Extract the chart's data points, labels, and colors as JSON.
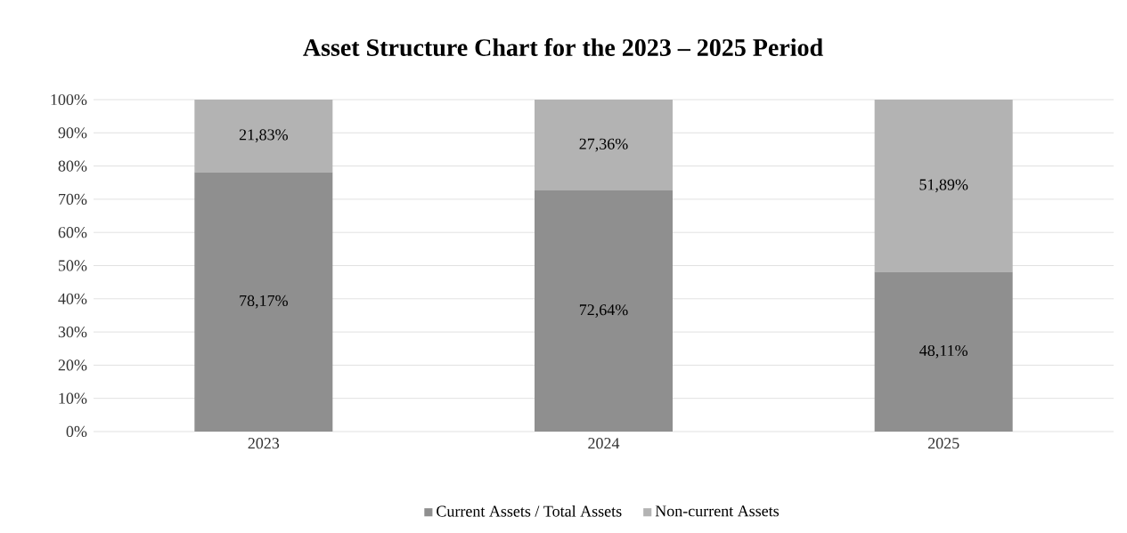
{
  "chart_data": {
    "type": "bar",
    "stacked": true,
    "title": "Asset Structure Chart for the 2023 – 2025 Period",
    "categories": [
      "2023",
      "2024",
      "2025"
    ],
    "series": [
      {
        "name": "Current Assets / Total Assets",
        "color": "#8f8f8f",
        "values": [
          78.17,
          72.64,
          48.11
        ],
        "value_labels": [
          "78,17%",
          "72,64%",
          "48,11%"
        ]
      },
      {
        "name": "Non-current Assets",
        "color": "#b3b3b3",
        "values": [
          21.83,
          27.36,
          51.89
        ],
        "value_labels": [
          "21,83%",
          "27,36%",
          "51,89%"
        ]
      }
    ],
    "ylim": [
      0,
      100
    ],
    "yticks": [
      {
        "value": 0,
        "label": "0%"
      },
      {
        "value": 10,
        "label": "10%"
      },
      {
        "value": 20,
        "label": "20%"
      },
      {
        "value": 30,
        "label": "30%"
      },
      {
        "value": 40,
        "label": "40%"
      },
      {
        "value": 50,
        "label": "50%"
      },
      {
        "value": 60,
        "label": "60%"
      },
      {
        "value": 70,
        "label": "70%"
      },
      {
        "value": 80,
        "label": "80%"
      },
      {
        "value": 90,
        "label": "90%"
      },
      {
        "value": 100,
        "label": "100%"
      }
    ],
    "grid": "y",
    "legend": "bottom"
  }
}
